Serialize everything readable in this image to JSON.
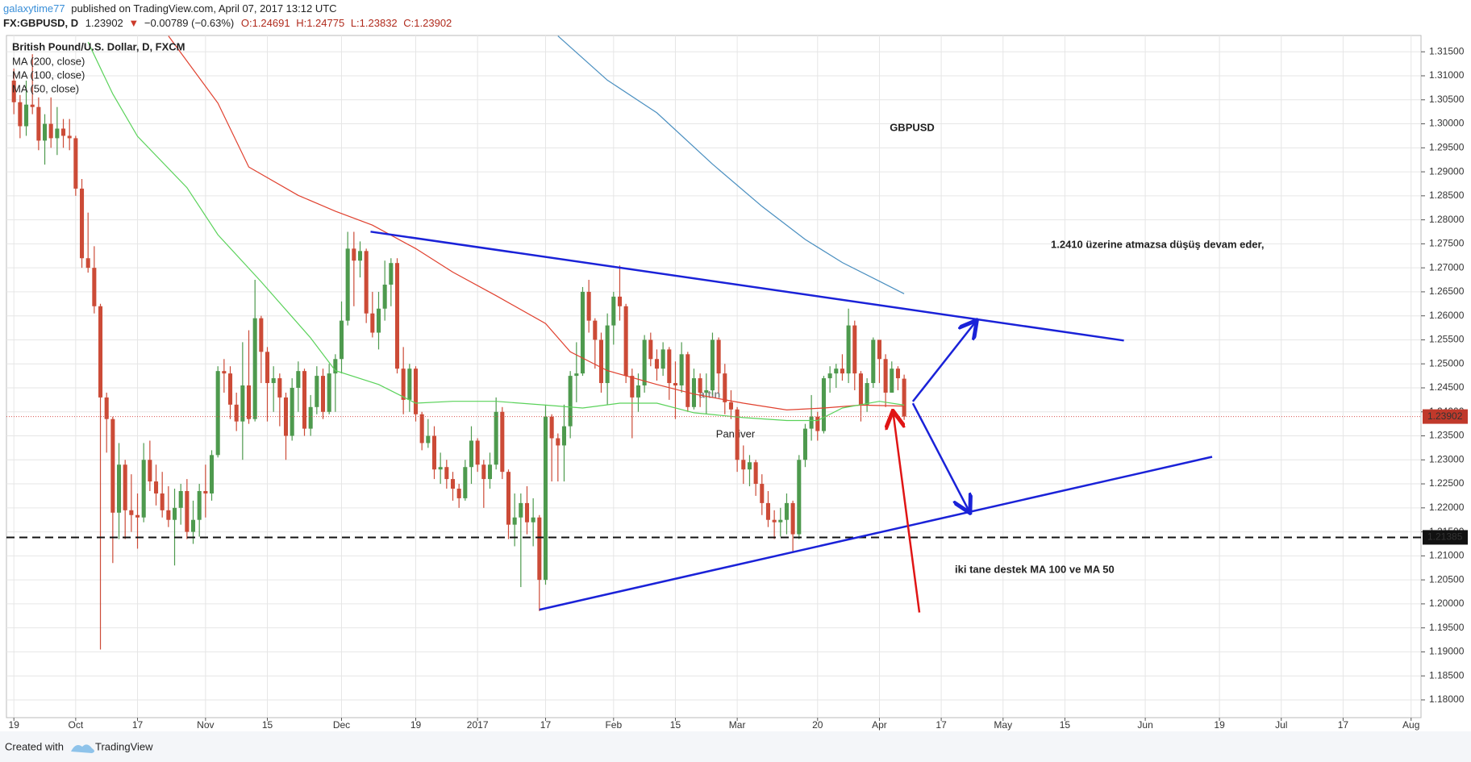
{
  "header": {
    "author": "galaxytime77",
    "published": "published on TradingView.com, April 07, 2017 13:12 UTC",
    "symbol": "FX:GBPUSD, D",
    "last": "1.23902",
    "change": "−0.00789 (−0.63%)",
    "ohlc": [
      "O:1.24691",
      "H:1.24775",
      "L:1.23832",
      "C:1.23902"
    ]
  },
  "chart_data": {
    "type": "candlestick",
    "title": "British Pound/U.S. Dollar, D, FXCM",
    "annotations": [
      "GBPUSD",
      "1.2410 üzerine atmazsa düşüş devam eder,",
      "iki tane destek MA 100 ve  MA 50"
    ],
    "watermark": [
      "altin",
      "Panriver"
    ],
    "up_color": "#4e9a4e",
    "down_color": "#cc4b37",
    "grid": true,
    "x": [
      0,
      1,
      2,
      3,
      4,
      5,
      6,
      7,
      8,
      9,
      10,
      11,
      12,
      13,
      14,
      15,
      16,
      17,
      18,
      19,
      20,
      21,
      22,
      23,
      24,
      25,
      26,
      27,
      28,
      29,
      30,
      31,
      32,
      33,
      34,
      35,
      36,
      37,
      38,
      39,
      40,
      41,
      42,
      43,
      44,
      45,
      46,
      47,
      48,
      49,
      50,
      51,
      52,
      53,
      54,
      55,
      56,
      57,
      58,
      59,
      60,
      61,
      62,
      63,
      64,
      65,
      66,
      67,
      68,
      69,
      70,
      71,
      72,
      73,
      74,
      75,
      76,
      77,
      78,
      79,
      80,
      81,
      82,
      83,
      84,
      85,
      86,
      87,
      88,
      89,
      90,
      91,
      92,
      93,
      94,
      95,
      96,
      97,
      98,
      99,
      100,
      101,
      102,
      103,
      104,
      105,
      106,
      107,
      108,
      109,
      110,
      111,
      112,
      113,
      114,
      115,
      116,
      117,
      118,
      119,
      120,
      121,
      122,
      123,
      124,
      125,
      126,
      127,
      128,
      129,
      130,
      131,
      132,
      133,
      134,
      135,
      136,
      137,
      138,
      139,
      140,
      141,
      142,
      143,
      144
    ],
    "open": [
      1.309,
      1.3045,
      1.2995,
      1.304,
      1.3035,
      1.2965,
      1.3,
      1.297,
      1.299,
      1.2975,
      1.297,
      1.2865,
      1.272,
      1.27,
      1.262,
      1.243,
      1.2385,
      1.219,
      1.229,
      1.2195,
      1.2185,
      1.218,
      1.23,
      1.2255,
      1.223,
      1.2195,
      1.2175,
      1.22,
      1.2235,
      1.215,
      1.2175,
      1.2235,
      1.223,
      1.231,
      1.2485,
      1.248,
      1.2415,
      1.238,
      1.2455,
      1.2385,
      1.2595,
      1.2525,
      1.246,
      1.247,
      1.243,
      1.235,
      1.245,
      1.2485,
      1.2365,
      1.241,
      1.2475,
      1.24,
      1.248,
      1.251,
      1.259,
      1.274,
      1.2715,
      1.2735,
      1.2605,
      1.2565,
      1.2615,
      1.2665,
      1.271,
      1.249,
      1.2425,
      1.249,
      1.2395,
      1.2335,
      1.235,
      1.228,
      1.2285,
      1.226,
      1.224,
      1.222,
      1.2285,
      1.234,
      1.229,
      1.226,
      1.229,
      1.24,
      1.2275,
      1.2165,
      1.218,
      1.221,
      1.217,
      1.218,
      1.205,
      1.239,
      1.2345,
      1.233,
      1.237,
      1.2475,
      1.248,
      1.265,
      1.259,
      1.255,
      1.246,
      1.258,
      1.264,
      1.262,
      1.2475,
      1.243,
      1.2455,
      1.255,
      1.251,
      1.249,
      1.253,
      1.246,
      1.2455,
      1.252,
      1.241,
      1.247,
      1.244,
      1.2445,
      1.255,
      1.248,
      1.242,
      1.2405,
      1.23,
      1.228,
      1.2295,
      1.225,
      1.221,
      1.2175,
      1.217,
      1.2175,
      1.221,
      1.2145,
      1.23,
      1.2365,
      1.239,
      1.236,
      1.247,
      1.248,
      1.249,
      1.248,
      1.258,
      1.248,
      1.2415,
      1.246,
      1.255,
      1.251,
      1.244,
      1.249,
      1.24691
    ],
    "high": [
      1.3115,
      1.306,
      1.309,
      1.3145,
      1.3055,
      1.302,
      1.3055,
      1.3035,
      1.301,
      1.301,
      1.2975,
      1.2885,
      1.2815,
      1.2745,
      1.2625,
      1.244,
      1.239,
      1.2335,
      1.23,
      1.227,
      1.223,
      1.2335,
      1.234,
      1.229,
      1.2275,
      1.2245,
      1.224,
      1.225,
      1.226,
      1.2215,
      1.225,
      1.229,
      1.232,
      1.2495,
      1.251,
      1.2495,
      1.244,
      1.2545,
      1.257,
      1.2675,
      1.26,
      1.2535,
      1.2495,
      1.248,
      1.244,
      1.247,
      1.2505,
      1.249,
      1.2435,
      1.2495,
      1.249,
      1.25,
      1.252,
      1.263,
      1.2775,
      1.2775,
      1.2755,
      1.274,
      1.265,
      1.265,
      1.2715,
      1.272,
      1.272,
      1.2535,
      1.25,
      1.2495,
      1.24,
      1.2385,
      1.237,
      1.2315,
      1.23,
      1.2275,
      1.225,
      1.23,
      1.237,
      1.2345,
      1.23,
      1.2315,
      1.243,
      1.241,
      1.228,
      1.223,
      1.223,
      1.2245,
      1.222,
      1.2185,
      1.2415,
      1.2395,
      1.2355,
      1.2415,
      1.2485,
      1.2545,
      1.266,
      1.2675,
      1.2595,
      1.2565,
      1.2605,
      1.265,
      1.2705,
      1.2625,
      1.249,
      1.248,
      1.256,
      1.2565,
      1.253,
      1.2545,
      1.2535,
      1.2505,
      1.2545,
      1.2525,
      1.249,
      1.248,
      1.248,
      1.2565,
      1.2555,
      1.25,
      1.2445,
      1.241,
      1.233,
      1.231,
      1.23,
      1.227,
      1.2235,
      1.2195,
      1.22,
      1.223,
      1.2215,
      1.231,
      1.2375,
      1.2435,
      1.24,
      1.2475,
      1.2495,
      1.25,
      1.252,
      1.2615,
      1.259,
      1.2485,
      1.247,
      1.2555,
      1.255,
      1.252,
      1.2505,
      1.2495,
      1.24775
    ],
    "low": [
      1.302,
      1.297,
      1.2975,
      1.302,
      1.2945,
      1.2915,
      1.295,
      1.2935,
      1.295,
      1.2945,
      1.285,
      1.27,
      1.269,
      1.2605,
      1.1905,
      1.2315,
      1.2085,
      1.2135,
      1.2135,
      1.215,
      1.2115,
      1.217,
      1.2235,
      1.2205,
      1.218,
      1.216,
      1.208,
      1.2165,
      1.2135,
      1.2125,
      1.214,
      1.218,
      1.2215,
      1.2305,
      1.244,
      1.2385,
      1.236,
      1.23,
      1.2375,
      1.238,
      1.246,
      1.238,
      1.24,
      1.237,
      1.23,
      1.234,
      1.24,
      1.235,
      1.235,
      1.2395,
      1.2385,
      1.2395,
      1.24,
      1.248,
      1.258,
      1.262,
      1.268,
      1.2585,
      1.2555,
      1.253,
      1.259,
      1.262,
      1.248,
      1.2395,
      1.24,
      1.238,
      1.232,
      1.2325,
      1.226,
      1.225,
      1.224,
      1.2215,
      1.22,
      1.2215,
      1.225,
      1.2275,
      1.22,
      1.224,
      1.228,
      1.226,
      1.2135,
      1.212,
      1.2035,
      1.2145,
      1.212,
      1.1985,
      1.204,
      1.2255,
      1.2255,
      1.2255,
      1.2345,
      1.242,
      1.2475,
      1.2565,
      1.249,
      1.244,
      1.2415,
      1.254,
      1.259,
      1.246,
      1.2345,
      1.24,
      1.244,
      1.2495,
      1.2465,
      1.2475,
      1.2425,
      1.2385,
      1.244,
      1.24,
      1.2405,
      1.241,
      1.2395,
      1.2435,
      1.244,
      1.2395,
      1.2385,
      1.2275,
      1.225,
      1.2245,
      1.2225,
      1.2185,
      1.216,
      1.2135,
      1.214,
      1.2145,
      1.211,
      1.2135,
      1.2285,
      1.234,
      1.234,
      1.2355,
      1.244,
      1.245,
      1.2465,
      1.246,
      1.2445,
      1.238,
      1.24,
      1.245,
      1.246,
      1.241,
      1.244,
      1.2445,
      1.23832
    ],
    "close": [
      1.3045,
      1.2995,
      1.304,
      1.3035,
      1.2965,
      1.3,
      1.297,
      1.299,
      1.2975,
      1.297,
      1.2865,
      1.272,
      1.27,
      1.262,
      1.243,
      1.2385,
      1.219,
      1.229,
      1.2195,
      1.2185,
      1.218,
      1.23,
      1.2255,
      1.223,
      1.2195,
      1.2175,
      1.22,
      1.2235,
      1.215,
      1.2175,
      1.2235,
      1.223,
      1.231,
      1.2485,
      1.248,
      1.2415,
      1.238,
      1.2455,
      1.2385,
      1.2595,
      1.2525,
      1.246,
      1.247,
      1.243,
      1.235,
      1.245,
      1.2485,
      1.2365,
      1.241,
      1.2475,
      1.24,
      1.248,
      1.251,
      1.259,
      1.274,
      1.2715,
      1.2735,
      1.2605,
      1.2565,
      1.2615,
      1.2665,
      1.271,
      1.249,
      1.2425,
      1.249,
      1.2395,
      1.2335,
      1.235,
      1.228,
      1.2285,
      1.226,
      1.224,
      1.222,
      1.2285,
      1.234,
      1.229,
      1.226,
      1.229,
      1.24,
      1.2275,
      1.2165,
      1.218,
      1.221,
      1.217,
      1.218,
      1.205,
      1.239,
      1.2345,
      1.233,
      1.237,
      1.2475,
      1.248,
      1.265,
      1.259,
      1.255,
      1.246,
      1.258,
      1.264,
      1.262,
      1.2475,
      1.243,
      1.2455,
      1.255,
      1.251,
      1.249,
      1.253,
      1.246,
      1.2455,
      1.252,
      1.241,
      1.247,
      1.244,
      1.2445,
      1.255,
      1.248,
      1.242,
      1.2405,
      1.23,
      1.228,
      1.2295,
      1.225,
      1.221,
      1.2175,
      1.217,
      1.2175,
      1.221,
      1.2145,
      1.23,
      1.2365,
      1.239,
      1.236,
      1.247,
      1.248,
      1.249,
      1.248,
      1.258,
      1.248,
      1.2415,
      1.246,
      1.255,
      1.251,
      1.244,
      1.249,
      1.247,
      1.23902
    ],
    "ma_series": [
      {
        "name": "MA (200, close)",
        "color": "#4a8fc0",
        "x": [
          88,
          96,
          104,
          113,
          121,
          128,
          134,
          140,
          144
        ],
        "values": [
          1.3183,
          1.3091,
          1.3023,
          1.2916,
          1.2828,
          1.2759,
          1.2711,
          1.2672,
          1.2646
        ]
      },
      {
        "name": "MA (100, close)",
        "color": "#e0402e",
        "x": [
          25,
          33,
          38,
          46,
          52,
          58,
          65,
          71,
          78,
          86,
          90,
          96,
          104,
          110,
          118,
          125,
          131,
          137,
          144
        ],
        "values": [
          1.3183,
          1.3043,
          1.291,
          1.2851,
          1.2818,
          1.2789,
          1.274,
          1.2691,
          1.2642,
          1.2584,
          1.2525,
          1.2486,
          1.2457,
          1.2437,
          1.2418,
          1.2404,
          1.2408,
          1.2414,
          1.2412
        ]
      },
      {
        "name": "MA (50, close)",
        "color": "#5ad25a",
        "x": [
          12,
          16,
          20,
          28,
          33,
          40,
          48,
          52,
          59,
          65,
          71,
          78,
          86,
          92,
          98,
          104,
          110,
          118,
          125,
          130,
          134,
          140,
          144
        ],
        "values": [
          1.317,
          1.3062,
          1.2974,
          1.2867,
          1.2769,
          1.2671,
          1.2554,
          1.2486,
          1.2457,
          1.2418,
          1.2422,
          1.2422,
          1.2414,
          1.2408,
          1.2418,
          1.2418,
          1.2398,
          1.2388,
          1.2382,
          1.2382,
          1.2408,
          1.2422,
          1.2414
        ]
      }
    ],
    "support_level": 1.21385,
    "last_price": 1.23902,
    "xlim": [
      -1.2,
      227.6
    ],
    "xticks": [
      {
        "value": 0,
        "label": "19"
      },
      {
        "value": 10,
        "label": "Oct"
      },
      {
        "value": 20,
        "label": "17"
      },
      {
        "value": 31,
        "label": "Nov"
      },
      {
        "value": 41,
        "label": "15"
      },
      {
        "value": 53,
        "label": "Dec"
      },
      {
        "value": 65,
        "label": "19"
      },
      {
        "value": 75,
        "label": "2017"
      },
      {
        "value": 86,
        "label": "17"
      },
      {
        "value": 97,
        "label": "Feb"
      },
      {
        "value": 107,
        "label": "15"
      },
      {
        "value": 117,
        "label": "Mar"
      },
      {
        "value": 130,
        "label": "20"
      },
      {
        "value": 140,
        "label": "Apr"
      },
      {
        "value": 150,
        "label": "17"
      },
      {
        "value": 160,
        "label": "May"
      },
      {
        "value": 170,
        "label": "15"
      },
      {
        "value": 183,
        "label": "Jun"
      },
      {
        "value": 195,
        "label": "19"
      },
      {
        "value": 205,
        "label": "Jul"
      },
      {
        "value": 215,
        "label": "17"
      },
      {
        "value": 226,
        "label": "Aug"
      }
    ],
    "ylim": [
      1.1763,
      1.3184
    ],
    "yticks": [
      {
        "value": 1.18,
        "label": "1.18000"
      },
      {
        "value": 1.185,
        "label": "1.18500"
      },
      {
        "value": 1.19,
        "label": "1.19000"
      },
      {
        "value": 1.195,
        "label": "1.19500"
      },
      {
        "value": 1.2,
        "label": "1.20000"
      },
      {
        "value": 1.205,
        "label": "1.20500"
      },
      {
        "value": 1.21,
        "label": "1.21000"
      },
      {
        "value": 1.215,
        "label": "1.21500"
      },
      {
        "value": 1.22,
        "label": "1.22000"
      },
      {
        "value": 1.225,
        "label": "1.22500"
      },
      {
        "value": 1.23,
        "label": "1.23000"
      },
      {
        "value": 1.235,
        "label": "1.23500"
      },
      {
        "value": 1.24,
        "label": "1.24000"
      },
      {
        "value": 1.245,
        "label": "1.24500"
      },
      {
        "value": 1.25,
        "label": "1.25000"
      },
      {
        "value": 1.255,
        "label": "1.25500"
      },
      {
        "value": 1.26,
        "label": "1.26000"
      },
      {
        "value": 1.265,
        "label": "1.26500"
      },
      {
        "value": 1.27,
        "label": "1.27000"
      },
      {
        "value": 1.275,
        "label": "1.27500"
      },
      {
        "value": 1.28,
        "label": "1.28000"
      },
      {
        "value": 1.285,
        "label": "1.28500"
      },
      {
        "value": 1.29,
        "label": "1.29000"
      },
      {
        "value": 1.295,
        "label": "1.29500"
      },
      {
        "value": 1.3,
        "label": "1.30000"
      },
      {
        "value": 1.305,
        "label": "1.30500"
      },
      {
        "value": 1.31,
        "label": "1.31000"
      },
      {
        "value": 1.315,
        "label": "1.31500"
      }
    ]
  },
  "footer": {
    "created": "Created with",
    "brand": "TradingView"
  }
}
